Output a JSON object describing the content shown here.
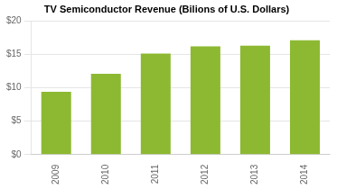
{
  "chart_data": {
    "type": "bar",
    "title": "TV Semiconductor Revenue (Bilions of U.S. Dollars)",
    "categories": [
      "2009",
      "2010",
      "2011",
      "2012",
      "2013",
      "2014"
    ],
    "values": [
      9.4,
      12.1,
      15.1,
      16.2,
      16.3,
      17.1
    ],
    "color": "#8db932",
    "ylim": [
      0,
      20
    ],
    "yticks": [
      {
        "value": 0,
        "label": "$0"
      },
      {
        "value": 5,
        "label": "$5"
      },
      {
        "value": 10,
        "label": "$10"
      },
      {
        "value": 15,
        "label": "$15"
      },
      {
        "value": 20,
        "label": "$20"
      }
    ],
    "grid": true
  }
}
